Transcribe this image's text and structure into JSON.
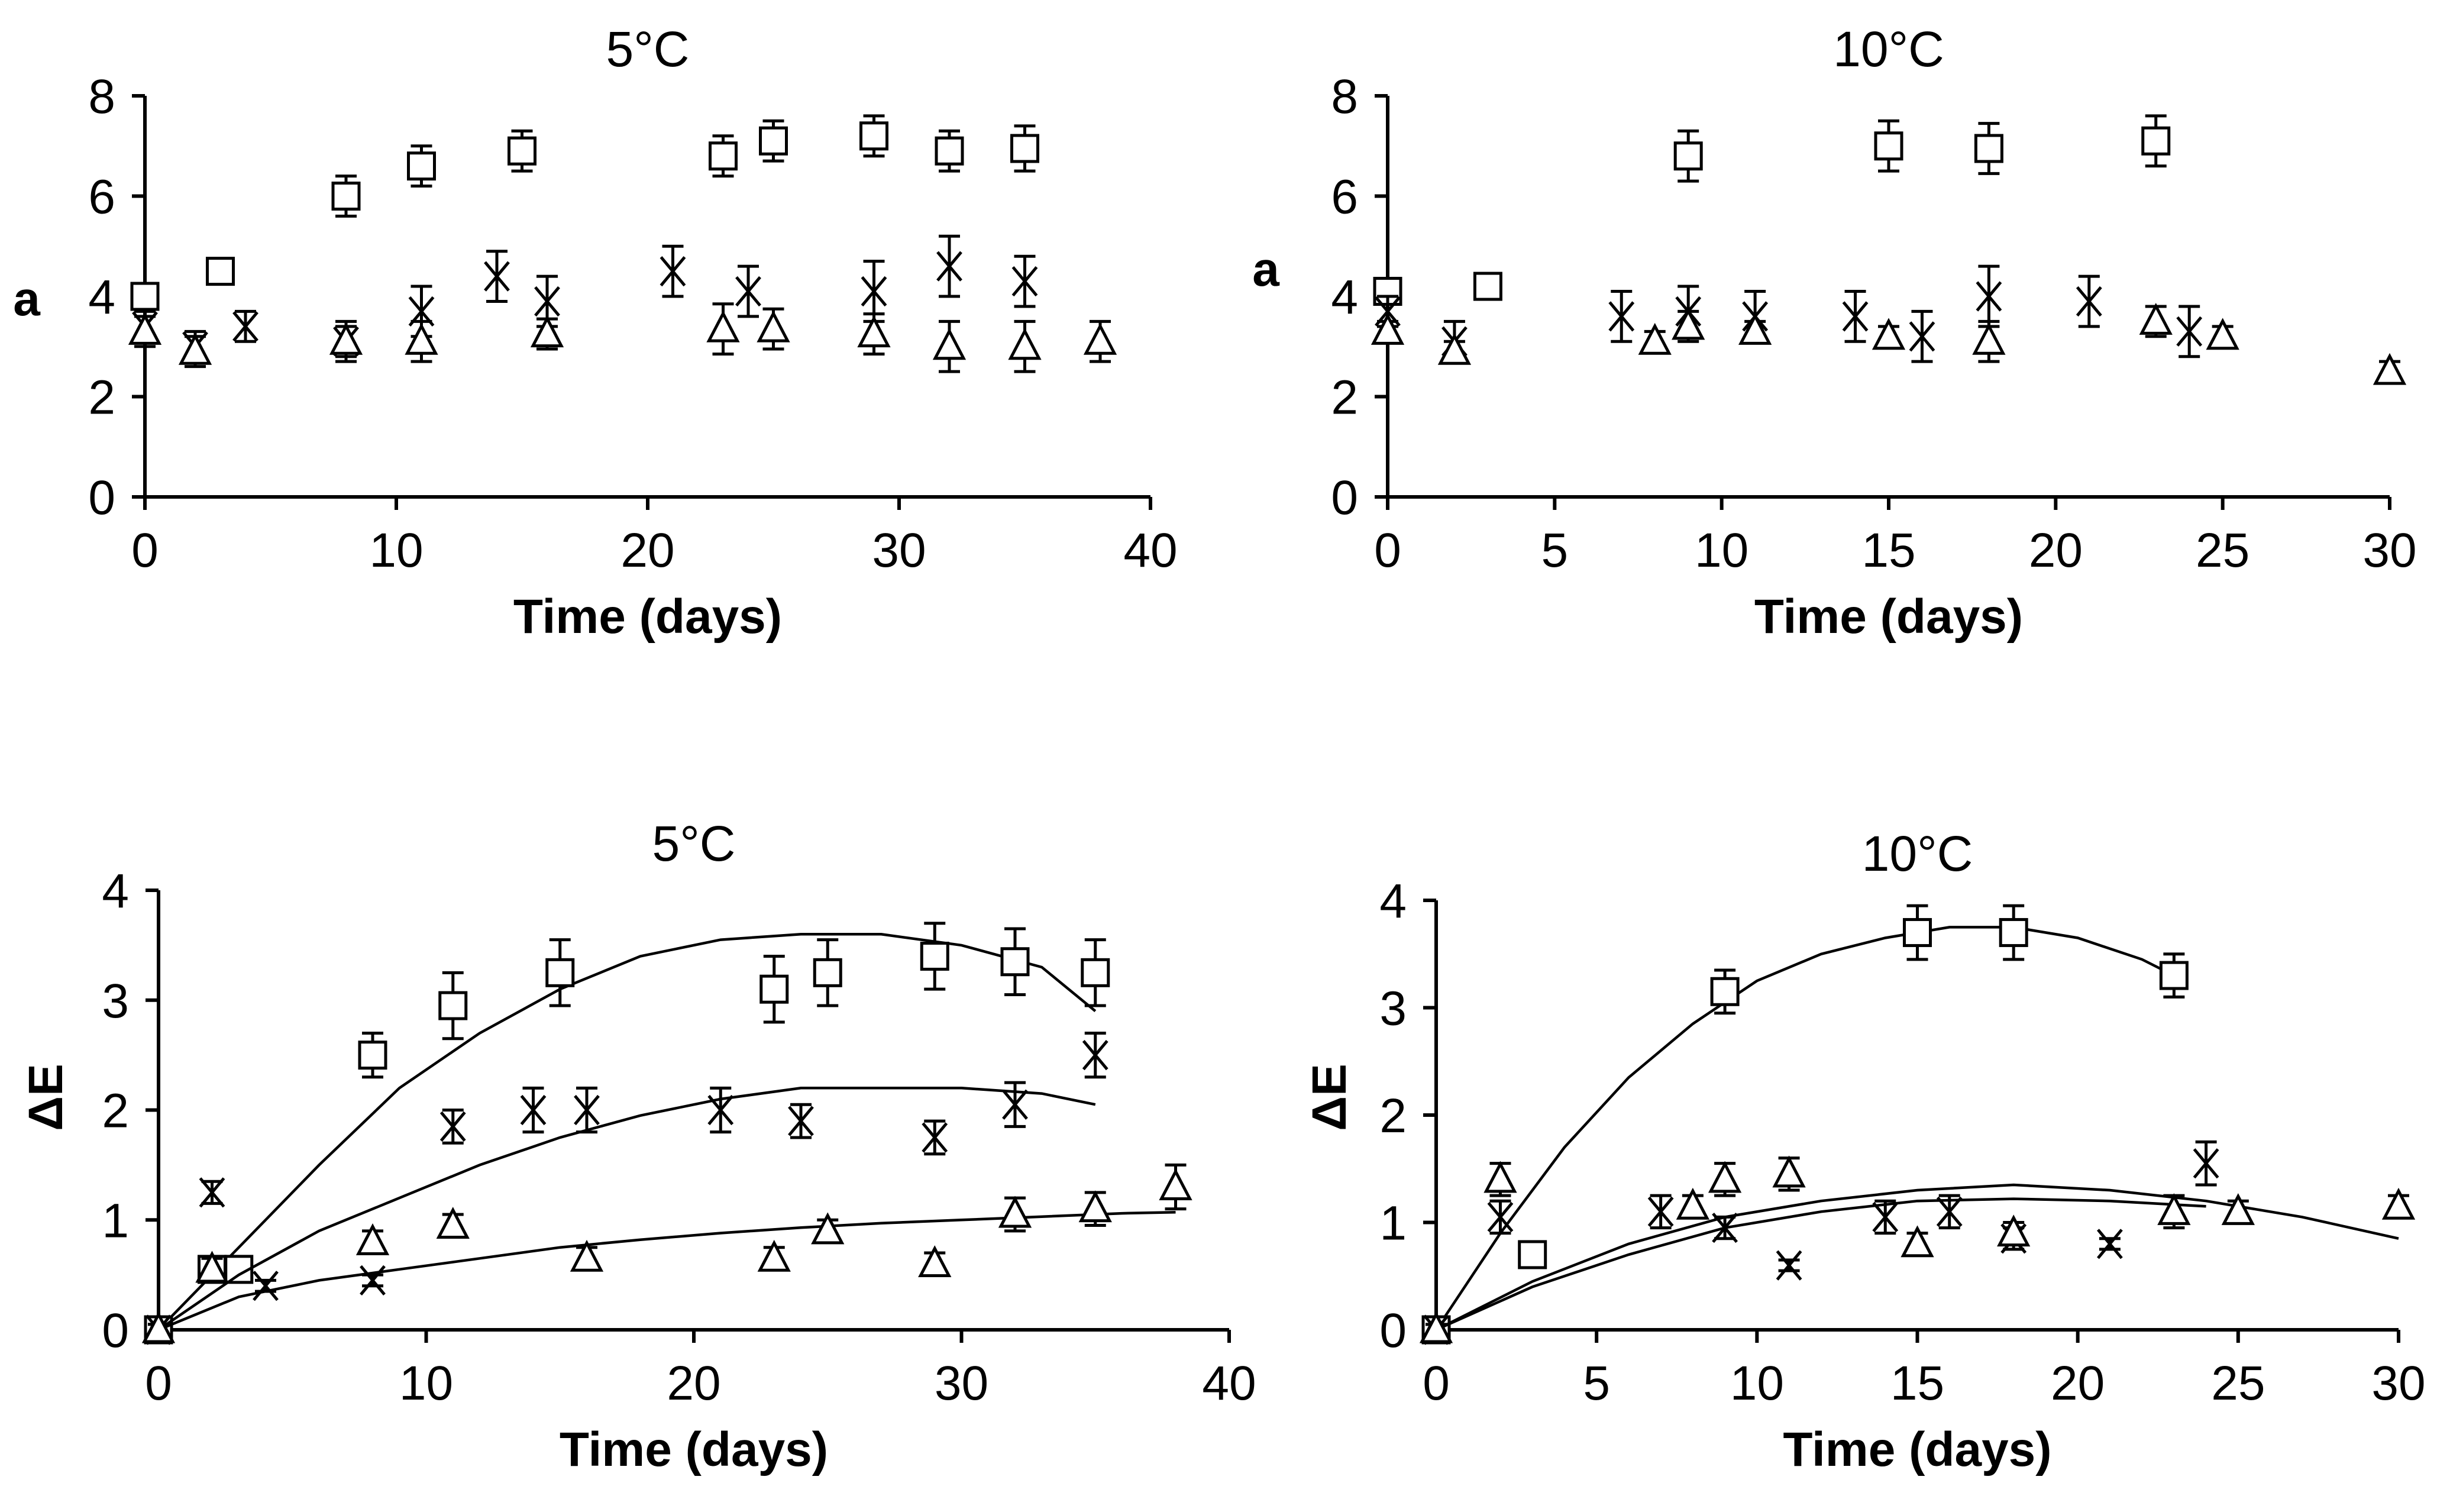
{
  "chart_data": [
    {
      "type": "scatter",
      "title": "5°C",
      "xlabel": "Time (days)",
      "ylabel": "a",
      "xlim": [
        0,
        40
      ],
      "ylim": [
        0,
        8
      ],
      "xticks": [
        0,
        10,
        20,
        30,
        40
      ],
      "yticks": [
        0,
        2,
        4,
        6,
        8
      ],
      "grid": false,
      "series": [
        {
          "marker": "square",
          "x": [
            0,
            3,
            8,
            11,
            15,
            23,
            25,
            29,
            32,
            35
          ],
          "y": [
            4.0,
            4.5,
            6.0,
            6.6,
            6.9,
            6.8,
            7.1,
            7.2,
            6.9,
            6.95
          ],
          "err": [
            0.2,
            0.2,
            0.4,
            0.4,
            0.4,
            0.4,
            0.4,
            0.4,
            0.4,
            0.45
          ]
        },
        {
          "marker": "x",
          "x": [
            0,
            2,
            4,
            8,
            11,
            14,
            16,
            21,
            24,
            29,
            32,
            35
          ],
          "y": [
            3.4,
            3.0,
            3.4,
            3.1,
            3.7,
            4.4,
            3.9,
            4.5,
            4.1,
            4.1,
            4.6,
            4.3
          ],
          "err": [
            0.3,
            0.3,
            0.3,
            0.4,
            0.5,
            0.5,
            0.5,
            0.5,
            0.5,
            0.6,
            0.6,
            0.5
          ]
        },
        {
          "marker": "triangle",
          "x": [
            0,
            2,
            8,
            11,
            16,
            23,
            25,
            29,
            32,
            35,
            38
          ],
          "y": [
            3.3,
            2.9,
            3.1,
            3.1,
            3.25,
            3.35,
            3.35,
            3.25,
            3.0,
            3.0,
            3.1
          ],
          "err": [
            0.3,
            0.3,
            0.3,
            0.4,
            0.3,
            0.5,
            0.4,
            0.4,
            0.5,
            0.5,
            0.4
          ]
        }
      ]
    },
    {
      "type": "scatter",
      "title": "10°C",
      "xlabel": "Time (days)",
      "ylabel": "a",
      "xlim": [
        0,
        30
      ],
      "ylim": [
        0,
        8
      ],
      "xticks": [
        0,
        5,
        10,
        15,
        20,
        25,
        30
      ],
      "yticks": [
        0,
        2,
        4,
        6,
        8
      ],
      "grid": false,
      "series": [
        {
          "marker": "square",
          "x": [
            0,
            3,
            9,
            15,
            18,
            23
          ],
          "y": [
            4.1,
            4.2,
            6.8,
            7.0,
            6.95,
            7.1
          ],
          "err": [
            0.2,
            0.2,
            0.5,
            0.5,
            0.5,
            0.5
          ]
        },
        {
          "marker": "x",
          "x": [
            0,
            2,
            7,
            9,
            11,
            14,
            16,
            18,
            21,
            24
          ],
          "y": [
            3.7,
            3.1,
            3.6,
            3.7,
            3.6,
            3.6,
            3.2,
            4.0,
            3.9,
            3.3
          ],
          "err": [
            0.3,
            0.4,
            0.5,
            0.5,
            0.5,
            0.5,
            0.5,
            0.6,
            0.5,
            0.5
          ]
        },
        {
          "marker": "triangle",
          "x": [
            0,
            2,
            8,
            9,
            11,
            15,
            18,
            23,
            25,
            30
          ],
          "y": [
            3.3,
            2.9,
            3.1,
            3.4,
            3.3,
            3.2,
            3.1,
            3.5,
            3.2,
            2.5
          ],
          "err": [
            0.2,
            0.2,
            0.2,
            0.3,
            0.2,
            0.2,
            0.4,
            0.3,
            0.2,
            0.2
          ]
        }
      ]
    },
    {
      "type": "scatter",
      "title": "5°C",
      "xlabel": "Time (days)",
      "ylabel": "ΔE",
      "xlim": [
        0,
        40
      ],
      "ylim": [
        0,
        4
      ],
      "xticks": [
        0,
        10,
        20,
        30,
        40
      ],
      "yticks": [
        0,
        1,
        2,
        3,
        4
      ],
      "grid": false,
      "series": [
        {
          "marker": "square",
          "x": [
            0,
            2,
            3,
            8,
            11,
            15,
            23,
            25,
            29,
            32,
            35
          ],
          "y": [
            0,
            0.55,
            0.55,
            2.5,
            2.95,
            3.25,
            3.1,
            3.25,
            3.4,
            3.35,
            3.25
          ],
          "err": [
            0.05,
            0.1,
            0.1,
            0.2,
            0.3,
            0.3,
            0.3,
            0.3,
            0.3,
            0.3,
            0.3
          ],
          "fit": {
            "x": [
              0,
              3,
              6,
              9,
              12,
              15,
              18,
              21,
              24,
              27,
              30,
              33,
              35
            ],
            "y": [
              0,
              0.75,
              1.5,
              2.2,
              2.7,
              3.1,
              3.4,
              3.55,
              3.6,
              3.6,
              3.5,
              3.3,
              2.9
            ]
          }
        },
        {
          "marker": "x",
          "x": [
            0,
            2,
            4,
            8,
            11,
            14,
            16,
            21,
            24,
            29,
            32,
            35
          ],
          "y": [
            0,
            1.25,
            0.4,
            0.45,
            1.85,
            2.0,
            2.0,
            2.0,
            1.9,
            1.75,
            2.05,
            2.5
          ],
          "err": [
            0.05,
            0.1,
            0.05,
            0.05,
            0.15,
            0.2,
            0.2,
            0.2,
            0.15,
            0.15,
            0.2,
            0.2
          ],
          "fit": {
            "x": [
              0,
              3,
              6,
              9,
              12,
              15,
              18,
              21,
              24,
              27,
              30,
              33,
              35
            ],
            "y": [
              0,
              0.5,
              0.9,
              1.2,
              1.5,
              1.75,
              1.95,
              2.1,
              2.2,
              2.2,
              2.2,
              2.15,
              2.05
            ]
          }
        },
        {
          "marker": "triangle",
          "x": [
            0,
            2,
            8,
            11,
            16,
            23,
            25,
            29,
            32,
            35,
            38
          ],
          "y": [
            0,
            0.55,
            0.8,
            0.95,
            0.65,
            0.65,
            0.9,
            0.6,
            1.05,
            1.1,
            1.3
          ],
          "err": [
            0.05,
            0.1,
            0.1,
            0.1,
            0.1,
            0.1,
            0.1,
            0.1,
            0.15,
            0.15,
            0.2
          ],
          "fit": {
            "x": [
              0,
              3,
              6,
              9,
              12,
              15,
              18,
              21,
              24,
              27,
              30,
              33,
              36,
              38
            ],
            "y": [
              0,
              0.3,
              0.45,
              0.55,
              0.65,
              0.75,
              0.82,
              0.88,
              0.93,
              0.97,
              1.0,
              1.03,
              1.06,
              1.07
            ]
          }
        }
      ]
    },
    {
      "type": "scatter",
      "title": "10°C",
      "xlabel": "Time (days)",
      "ylabel": "ΔE",
      "xlim": [
        0,
        30
      ],
      "ylim": [
        0,
        4
      ],
      "xticks": [
        0,
        5,
        10,
        15,
        20,
        25,
        30
      ],
      "yticks": [
        0,
        1,
        2,
        3,
        4
      ],
      "grid": false,
      "series": [
        {
          "marker": "square",
          "x": [
            0,
            3,
            9,
            15,
            18,
            23
          ],
          "y": [
            0,
            0.7,
            3.15,
            3.7,
            3.7,
            3.3
          ],
          "err": [
            0.05,
            0.1,
            0.2,
            0.25,
            0.25,
            0.2
          ],
          "fit": {
            "x": [
              0,
              2,
              4,
              6,
              8,
              10,
              12,
              14,
              16,
              18,
              20,
              22,
              23
            ],
            "y": [
              0,
              0.9,
              1.7,
              2.35,
              2.85,
              3.25,
              3.5,
              3.65,
              3.75,
              3.75,
              3.65,
              3.45,
              3.3
            ]
          }
        },
        {
          "marker": "x",
          "x": [
            0,
            2,
            7,
            9,
            11,
            14,
            16,
            18,
            21,
            24
          ],
          "y": [
            0,
            1.05,
            1.1,
            0.95,
            0.6,
            1.05,
            1.1,
            0.85,
            0.8,
            1.55
          ],
          "err": [
            0.05,
            0.15,
            0.15,
            0.1,
            0.05,
            0.15,
            0.15,
            0.1,
            0.05,
            0.2
          ],
          "fit": {
            "x": [
              0,
              3,
              6,
              9,
              12,
              15,
              18,
              21,
              24
            ],
            "y": [
              0,
              0.4,
              0.7,
              0.95,
              1.1,
              1.2,
              1.22,
              1.2,
              1.15
            ]
          }
        },
        {
          "marker": "triangle",
          "x": [
            0,
            2,
            8,
            9,
            11,
            15,
            18,
            23,
            25,
            30
          ],
          "y": [
            0,
            1.4,
            1.15,
            1.4,
            1.45,
            0.8,
            0.9,
            1.1,
            1.1,
            1.15
          ],
          "err": [
            0.05,
            0.15,
            0.1,
            0.15,
            0.15,
            0.1,
            0.1,
            0.15,
            0.1,
            0.1
          ],
          "fit": {
            "x": [
              0,
              3,
              6,
              9,
              12,
              15,
              18,
              21,
              24,
              27,
              30
            ],
            "y": [
              0,
              0.45,
              0.8,
              1.05,
              1.2,
              1.3,
              1.35,
              1.3,
              1.2,
              1.05,
              0.85
            ]
          }
        }
      ]
    }
  ]
}
